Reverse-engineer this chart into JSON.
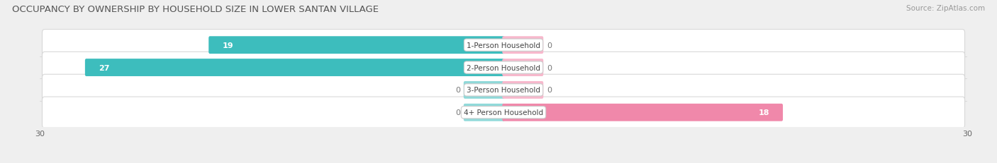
{
  "title": "OCCUPANCY BY OWNERSHIP BY HOUSEHOLD SIZE IN LOWER SANTAN VILLAGE",
  "source": "Source: ZipAtlas.com",
  "categories": [
    "1-Person Household",
    "2-Person Household",
    "3-Person Household",
    "4+ Person Household"
  ],
  "owner_values": [
    19,
    27,
    0,
    0
  ],
  "renter_values": [
    0,
    0,
    0,
    18
  ],
  "owner_color": "#3dbdbd",
  "owner_color_light": "#90d9d9",
  "renter_color": "#f088aa",
  "renter_color_light": "#f7b8cc",
  "axis_max": 30,
  "axis_min": -30,
  "bg_color": "#efefef",
  "title_fontsize": 9.5,
  "source_fontsize": 7.5,
  "value_fontsize": 8,
  "cat_fontsize": 7.5,
  "tick_fontsize": 8,
  "legend_fontsize": 8,
  "stub_size": 2.5,
  "bar_height": 0.62
}
